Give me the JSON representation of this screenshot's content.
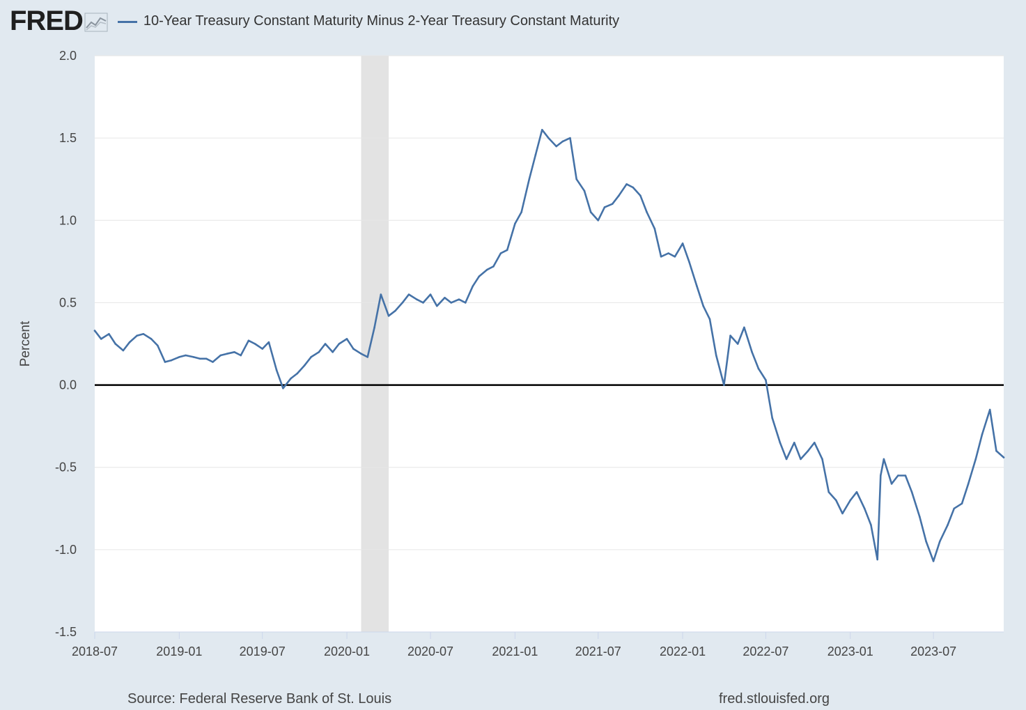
{
  "header": {
    "logo_text": "FRED",
    "logo_mark": "fred-chart-glyph-icon",
    "legend_label": "10-Year Treasury Constant Maturity Minus 2-Year Treasury Constant Maturity"
  },
  "footer": {
    "source": "Source: Federal Reserve Bank of St. Louis",
    "url": "fred.stlouisfed.org"
  },
  "colors": {
    "background": "#e1e9f0",
    "plot_background": "#ffffff",
    "series": "#4572a7",
    "recession": "#e3e3e3",
    "zero_line": "#000000"
  },
  "chart_data": {
    "type": "line",
    "title": "10-Year Treasury Constant Maturity Minus 2-Year Treasury Constant Maturity",
    "xlabel": "",
    "ylabel": "Percent",
    "ylim": [
      -1.5,
      2.0
    ],
    "yticks": [
      2.0,
      1.5,
      1.0,
      0.5,
      0.0,
      -0.5,
      -1.0,
      -1.5
    ],
    "ytick_labels": [
      "2.0",
      "1.5",
      "1.0",
      "0.5",
      "0.0",
      "-0.5",
      "-1.0",
      "-1.5"
    ],
    "xlim": [
      "2018-07-01",
      "2023-12-01"
    ],
    "xticks": [
      "2018-07",
      "2019-01",
      "2019-07",
      "2020-01",
      "2020-07",
      "2021-01",
      "2021-07",
      "2022-01",
      "2022-07",
      "2023-01",
      "2023-07"
    ],
    "grid": true,
    "legend": "top-left",
    "recession_band": {
      "start": "2020-02",
      "end": "2020-04"
    },
    "zero_line": 0,
    "series": [
      {
        "name": "10-Year Treasury Constant Maturity Minus 2-Year Treasury Constant Maturity",
        "x": [
          "2018-07-01",
          "2018-07-15",
          "2018-08-01",
          "2018-08-15",
          "2018-09-01",
          "2018-09-15",
          "2018-10-01",
          "2018-10-15",
          "2018-11-01",
          "2018-11-15",
          "2018-12-01",
          "2018-12-15",
          "2019-01-01",
          "2019-01-15",
          "2019-02-01",
          "2019-02-15",
          "2019-03-01",
          "2019-03-15",
          "2019-04-01",
          "2019-04-15",
          "2019-05-01",
          "2019-05-15",
          "2019-06-01",
          "2019-06-15",
          "2019-07-01",
          "2019-07-15",
          "2019-08-01",
          "2019-08-15",
          "2019-09-01",
          "2019-09-15",
          "2019-10-01",
          "2019-10-15",
          "2019-11-01",
          "2019-11-15",
          "2019-12-01",
          "2019-12-15",
          "2020-01-01",
          "2020-01-15",
          "2020-02-01",
          "2020-02-15",
          "2020-03-01",
          "2020-03-15",
          "2020-04-01",
          "2020-04-15",
          "2020-05-01",
          "2020-05-15",
          "2020-06-01",
          "2020-06-15",
          "2020-07-01",
          "2020-07-15",
          "2020-08-01",
          "2020-08-15",
          "2020-09-01",
          "2020-09-15",
          "2020-10-01",
          "2020-10-15",
          "2020-11-01",
          "2020-11-15",
          "2020-12-01",
          "2020-12-15",
          "2021-01-01",
          "2021-01-15",
          "2021-02-01",
          "2021-02-15",
          "2021-03-01",
          "2021-03-15",
          "2021-04-01",
          "2021-04-15",
          "2021-05-01",
          "2021-05-15",
          "2021-06-01",
          "2021-06-15",
          "2021-07-01",
          "2021-07-15",
          "2021-08-01",
          "2021-08-15",
          "2021-09-01",
          "2021-09-15",
          "2021-10-01",
          "2021-10-15",
          "2021-11-01",
          "2021-11-15",
          "2021-12-01",
          "2021-12-15",
          "2022-01-01",
          "2022-01-15",
          "2022-02-01",
          "2022-02-15",
          "2022-03-01",
          "2022-03-15",
          "2022-04-01",
          "2022-04-15",
          "2022-05-01",
          "2022-05-15",
          "2022-06-01",
          "2022-06-15",
          "2022-07-01",
          "2022-07-15",
          "2022-08-01",
          "2022-08-15",
          "2022-09-01",
          "2022-09-15",
          "2022-10-01",
          "2022-10-15",
          "2022-11-01",
          "2022-11-15",
          "2022-12-01",
          "2022-12-15",
          "2023-01-01",
          "2023-01-15",
          "2023-02-01",
          "2023-02-15",
          "2023-03-01",
          "2023-03-08",
          "2023-03-15",
          "2023-04-01",
          "2023-04-15",
          "2023-05-01",
          "2023-05-15",
          "2023-06-01",
          "2023-06-15",
          "2023-07-01",
          "2023-07-15",
          "2023-08-01",
          "2023-08-15",
          "2023-09-01",
          "2023-09-15",
          "2023-10-01",
          "2023-10-15",
          "2023-11-01",
          "2023-11-15",
          "2023-12-01"
        ],
        "values": [
          0.33,
          0.28,
          0.31,
          0.25,
          0.21,
          0.26,
          0.3,
          0.31,
          0.28,
          0.24,
          0.14,
          0.15,
          0.17,
          0.18,
          0.17,
          0.16,
          0.16,
          0.14,
          0.18,
          0.19,
          0.2,
          0.18,
          0.27,
          0.25,
          0.22,
          0.26,
          0.09,
          -0.02,
          0.04,
          0.07,
          0.12,
          0.17,
          0.2,
          0.25,
          0.2,
          0.25,
          0.28,
          0.22,
          0.19,
          0.17,
          0.35,
          0.55,
          0.42,
          0.45,
          0.5,
          0.55,
          0.52,
          0.5,
          0.55,
          0.48,
          0.53,
          0.5,
          0.52,
          0.5,
          0.6,
          0.66,
          0.7,
          0.72,
          0.8,
          0.82,
          0.98,
          1.05,
          1.25,
          1.4,
          1.55,
          1.5,
          1.45,
          1.48,
          1.5,
          1.25,
          1.18,
          1.05,
          1.0,
          1.08,
          1.1,
          1.15,
          1.22,
          1.2,
          1.15,
          1.05,
          0.95,
          0.78,
          0.8,
          0.78,
          0.86,
          0.75,
          0.6,
          0.48,
          0.4,
          0.18,
          0.0,
          0.3,
          0.25,
          0.35,
          0.2,
          0.1,
          0.03,
          -0.2,
          -0.35,
          -0.45,
          -0.35,
          -0.45,
          -0.4,
          -0.35,
          -0.45,
          -0.65,
          -0.7,
          -0.78,
          -0.7,
          -0.65,
          -0.75,
          -0.85,
          -1.06,
          -0.55,
          -0.45,
          -0.6,
          -0.55,
          -0.55,
          -0.65,
          -0.8,
          -0.95,
          -1.07,
          -0.95,
          -0.85,
          -0.75,
          -0.72,
          -0.6,
          -0.45,
          -0.3,
          -0.15,
          -0.4,
          -0.44
        ]
      }
    ]
  }
}
